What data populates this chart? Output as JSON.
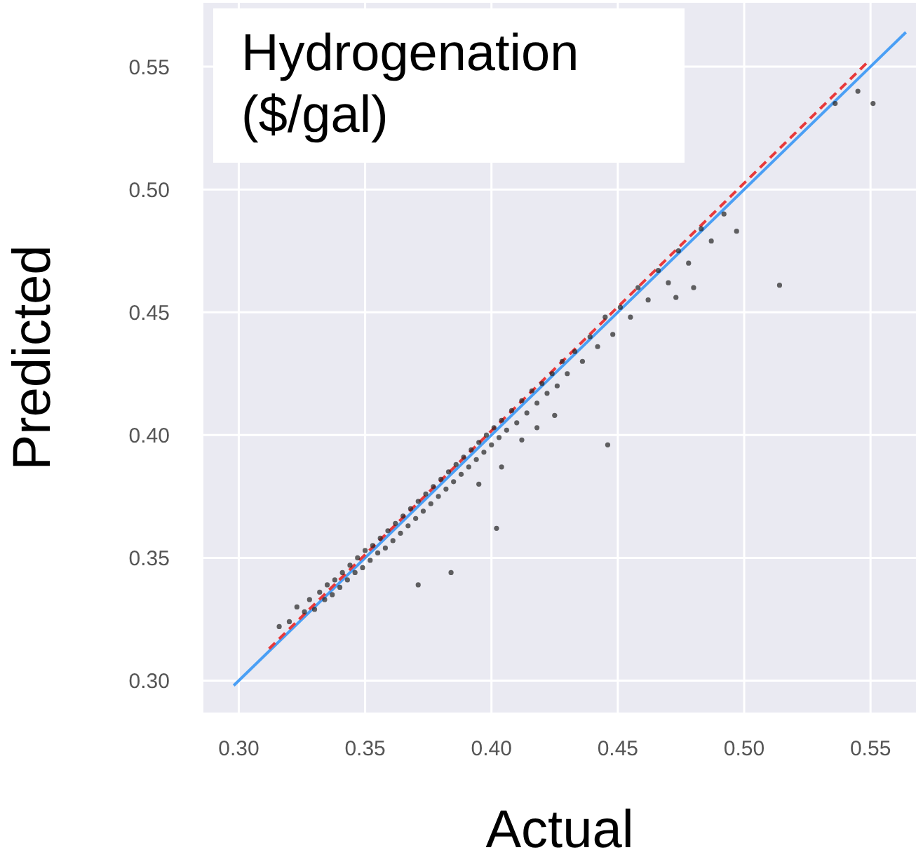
{
  "chart_data": {
    "type": "scatter",
    "title": "Hydrogenation ($/gal)",
    "xlabel": "Actual",
    "ylabel": "Predicted",
    "xlim": [
      0.286,
      0.568
    ],
    "ylim": [
      0.287,
      0.576
    ],
    "xticks": [
      {
        "value": 0.3,
        "label": "0.30"
      },
      0.35,
      {
        "value": 0.4,
        "label": "0.40"
      },
      0.45,
      {
        "value": 0.5,
        "label": "0.50"
      },
      0.55
    ],
    "yticks": [
      {
        "value": 0.3,
        "label": "0.30"
      },
      0.35,
      {
        "value": 0.4,
        "label": "0.40"
      },
      0.45,
      {
        "value": 0.5,
        "label": "0.50"
      },
      0.55
    ],
    "grid": true,
    "series": [
      {
        "marker": "circle",
        "color": "#222222",
        "x": [
          0.316,
          0.32,
          0.323,
          0.326,
          0.328,
          0.33,
          0.332,
          0.334,
          0.335,
          0.337,
          0.338,
          0.34,
          0.341,
          0.343,
          0.344,
          0.346,
          0.347,
          0.349,
          0.35,
          0.352,
          0.353,
          0.355,
          0.356,
          0.358,
          0.359,
          0.361,
          0.362,
          0.364,
          0.365,
          0.367,
          0.368,
          0.37,
          0.371,
          0.373,
          0.374,
          0.376,
          0.377,
          0.379,
          0.38,
          0.382,
          0.383,
          0.385,
          0.386,
          0.388,
          0.389,
          0.391,
          0.392,
          0.394,
          0.395,
          0.397,
          0.398,
          0.4,
          0.401,
          0.403,
          0.404,
          0.406,
          0.408,
          0.41,
          0.412,
          0.414,
          0.416,
          0.418,
          0.42,
          0.422,
          0.424,
          0.426,
          0.428,
          0.43,
          0.433,
          0.436,
          0.439,
          0.442,
          0.445,
          0.448,
          0.451,
          0.455,
          0.458,
          0.462,
          0.466,
          0.47,
          0.474,
          0.478,
          0.483,
          0.487,
          0.492,
          0.536,
          0.545,
          0.404,
          0.412,
          0.425,
          0.418,
          0.395,
          0.514,
          0.446,
          0.402,
          0.384,
          0.371,
          0.551,
          0.497,
          0.473,
          0.48
        ],
        "values": [
          0.322,
          0.324,
          0.33,
          0.328,
          0.333,
          0.329,
          0.336,
          0.333,
          0.339,
          0.335,
          0.341,
          0.338,
          0.344,
          0.341,
          0.347,
          0.344,
          0.35,
          0.346,
          0.353,
          0.349,
          0.355,
          0.352,
          0.358,
          0.354,
          0.361,
          0.357,
          0.364,
          0.36,
          0.367,
          0.363,
          0.37,
          0.366,
          0.373,
          0.369,
          0.376,
          0.372,
          0.379,
          0.375,
          0.382,
          0.378,
          0.385,
          0.381,
          0.388,
          0.384,
          0.391,
          0.387,
          0.394,
          0.39,
          0.397,
          0.393,
          0.4,
          0.396,
          0.403,
          0.399,
          0.406,
          0.402,
          0.41,
          0.405,
          0.414,
          0.409,
          0.418,
          0.413,
          0.421,
          0.417,
          0.425,
          0.42,
          0.43,
          0.425,
          0.434,
          0.43,
          0.44,
          0.436,
          0.448,
          0.441,
          0.452,
          0.448,
          0.46,
          0.455,
          0.467,
          0.462,
          0.475,
          0.47,
          0.484,
          0.479,
          0.49,
          0.535,
          0.54,
          0.387,
          0.398,
          0.408,
          0.403,
          0.38,
          0.461,
          0.396,
          0.362,
          0.344,
          0.339,
          0.535,
          0.483,
          0.456,
          0.46
        ]
      },
      {
        "type": "line",
        "color": "#4a9ff5",
        "line_style": "solid",
        "x": [
          0.298,
          0.564
        ],
        "values": [
          0.298,
          0.564
        ]
      },
      {
        "type": "line",
        "color": "#e8393a",
        "line_style": "dashed",
        "x": [
          0.312,
          0.549
        ],
        "values": [
          0.313,
          0.552
        ]
      }
    ]
  }
}
